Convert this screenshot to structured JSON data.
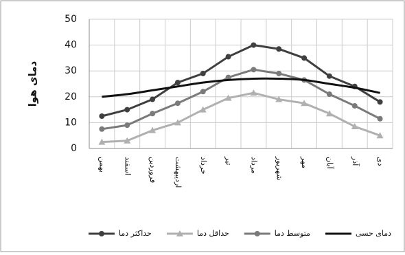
{
  "chart_data": {
    "type": "line",
    "y_label": "دمای هوا",
    "categories": [
      "بهمن",
      "اسفند",
      "فروردین",
      "اردیبهشت",
      "خرداد",
      "تیر",
      "مرداد",
      "شهریور",
      "مهر",
      "آبان",
      "آذر",
      "دی"
    ],
    "series": [
      {
        "name": "حداکثر دما",
        "color": "#3f3f3f",
        "marker": "circle",
        "values": [
          12.5,
          15,
          19,
          25.5,
          29,
          35.5,
          40,
          38.5,
          35,
          28,
          24,
          18
        ]
      },
      {
        "name": "حداقل دما",
        "color": "#b0b0b0",
        "marker": "triangle",
        "values": [
          2.5,
          3,
          7,
          10,
          15,
          19.5,
          21.5,
          19,
          17.5,
          13.5,
          8.5,
          5
        ]
      },
      {
        "name": "متوسط دما",
        "color": "#7a7a7a",
        "marker": "circle",
        "values": [
          7.5,
          9,
          13.5,
          17.5,
          22,
          27.5,
          30.5,
          29,
          26.5,
          21,
          16.5,
          11.5
        ]
      },
      {
        "name": "دمای حسی",
        "color": "#111111",
        "marker": "none",
        "values": [
          20,
          21,
          22.5,
          24,
          25.5,
          26.5,
          27,
          27,
          26.5,
          25,
          23.5,
          21.5
        ]
      }
    ],
    "ylim": [
      0,
      50
    ],
    "yticks": [
      0,
      10,
      20,
      30,
      40,
      50
    ],
    "grid": true
  }
}
